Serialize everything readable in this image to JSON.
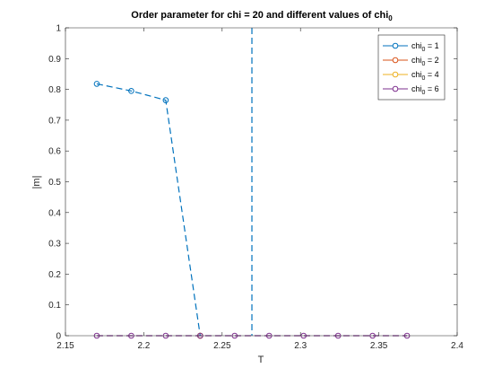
{
  "chart_data": {
    "type": "line",
    "title": "Order parameter for chi = 20 and different values of chi",
    "title_subscript": "0",
    "xlabel": "T",
    "ylabel": "|m|",
    "xlim": [
      2.15,
      2.4
    ],
    "ylim": [
      0,
      1
    ],
    "xticks": [
      "2.15",
      "2.2",
      "2.25",
      "2.3",
      "2.35",
      "2.4"
    ],
    "yticks": [
      "0",
      "0.1",
      "0.2",
      "0.3",
      "0.4",
      "0.5",
      "0.6",
      "0.7",
      "0.8",
      "0.9",
      "1"
    ],
    "grid": false,
    "legend_position": "top-right",
    "vertical_line_x": 2.269,
    "series": [
      {
        "legend_main": "chi",
        "legend_sub": "0",
        "legend_rest": " = 1",
        "color": "#0072BD",
        "x": [
          2.17,
          2.192,
          2.214,
          2.236
        ],
        "y": [
          0.818,
          0.795,
          0.765,
          0.0
        ]
      },
      {
        "legend_main": "chi",
        "legend_sub": "0",
        "legend_rest": " = 2",
        "color": "#D95319",
        "x": [
          2.236
        ],
        "y": [
          0.0
        ]
      },
      {
        "legend_main": "chi",
        "legend_sub": "0",
        "legend_rest": " = 4",
        "color": "#EDB120",
        "x": [
          2.236
        ],
        "y": [
          0.0
        ]
      },
      {
        "legend_main": "chi",
        "legend_sub": "0",
        "legend_rest": " = 6",
        "color": "#7E2F8E",
        "x": [
          2.17,
          2.192,
          2.214,
          2.236,
          2.258,
          2.28,
          2.302,
          2.324,
          2.346,
          2.368
        ],
        "y": [
          0,
          0,
          0,
          0,
          0,
          0,
          0,
          0,
          0,
          0
        ]
      }
    ]
  }
}
